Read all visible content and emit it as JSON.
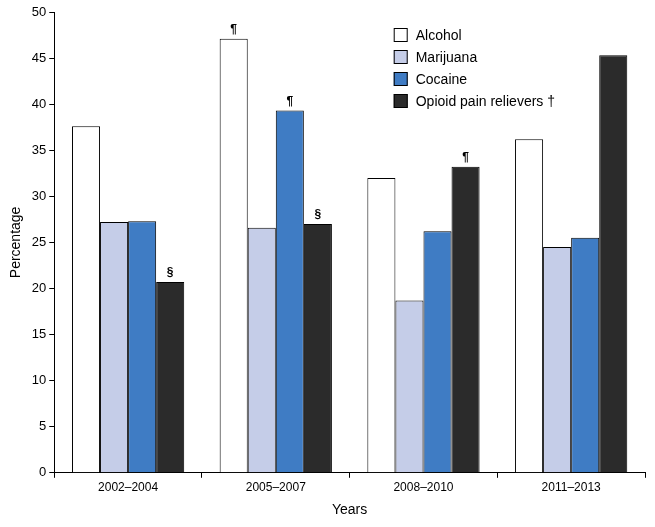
{
  "chart_data": {
    "type": "bar",
    "categories": [
      "2002–2004",
      "2005–2007",
      "2008–2010",
      "2011–2013"
    ],
    "series": [
      {
        "name": "Alcohol",
        "color": "#ffffff",
        "values": [
          37.6,
          47.1,
          32.0,
          36.2
        ]
      },
      {
        "name": "Marijuana",
        "color": "#c5cde8",
        "values": [
          27.2,
          26.6,
          18.7,
          24.5
        ]
      },
      {
        "name": "Cocaine",
        "color": "#3f7cc4",
        "values": [
          27.3,
          39.3,
          26.2,
          25.5
        ]
      },
      {
        "name": "Opioid pain relievers †",
        "color": "#2b2b2b",
        "values": [
          20.7,
          27.0,
          33.2,
          45.3
        ]
      }
    ],
    "x_label": "Years",
    "y_label": "Percentage",
    "ylim": [
      0,
      50
    ],
    "yticks": [
      0,
      5,
      10,
      15,
      20,
      25,
      30,
      35,
      40,
      45,
      50
    ],
    "grid": false,
    "legend": "upper right",
    "annotations": [
      {
        "series": "Opioid pain relievers †",
        "category": "2002–2004",
        "text": "§"
      },
      {
        "series": "Alcohol",
        "category": "2005–2007",
        "text": "¶"
      },
      {
        "series": "Cocaine",
        "category": "2005–2007",
        "text": "¶"
      },
      {
        "series": "Opioid pain relievers †",
        "category": "2005–2007",
        "text": "§"
      },
      {
        "series": "Opioid pain relievers †",
        "category": "2008–2010",
        "text": "¶"
      }
    ]
  }
}
